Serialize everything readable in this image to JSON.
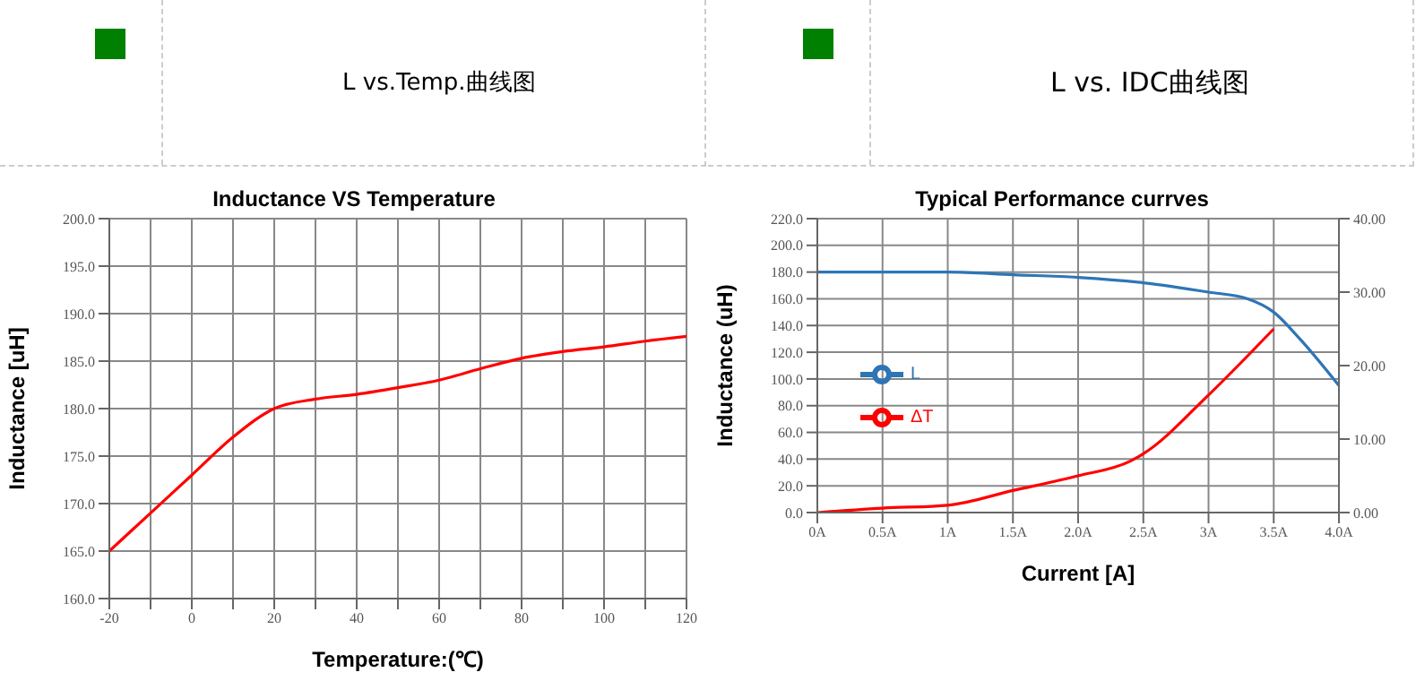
{
  "chart_data": [
    {
      "type": "line",
      "title": "Inductance VS Temperature",
      "annotations": [
        "L vs.Temp.曲线图"
      ],
      "xlabel": "Temperature:(℃)",
      "ylabel": "Inductance [uH]",
      "x": [
        -20,
        -10,
        0,
        10,
        20,
        30,
        40,
        50,
        60,
        70,
        80,
        90,
        100,
        110,
        120
      ],
      "series": [
        {
          "color": "#ff0000",
          "values": [
            165,
            169,
            173,
            177,
            180,
            181,
            181.5,
            182.2,
            183,
            184.2,
            185.3,
            186,
            186.5,
            187.1,
            187.6
          ]
        }
      ],
      "xlim": [
        -20,
        120
      ],
      "xticks": [
        -20,
        {
          "value": -10,
          "label": null
        },
        0,
        {
          "value": 10,
          "label": null
        },
        20,
        {
          "value": 30,
          "label": null
        },
        40,
        {
          "value": 50,
          "label": null
        },
        60,
        {
          "value": 70,
          "label": null
        },
        80,
        {
          "value": 90,
          "label": null
        },
        100,
        {
          "value": 110,
          "label": null
        },
        120
      ],
      "ylim": [
        160,
        200
      ],
      "yticks": [
        {
          "value": 160,
          "label": "160.0"
        },
        {
          "value": 165,
          "label": "165.0"
        },
        {
          "value": 170,
          "label": "170.0"
        },
        {
          "value": 175,
          "label": "175.0"
        },
        {
          "value": 180,
          "label": "180.0"
        },
        {
          "value": 185,
          "label": "185.0"
        },
        {
          "value": 190,
          "label": "190.0"
        },
        {
          "value": 195,
          "label": "195.0"
        },
        {
          "value": 200,
          "label": "200.0"
        }
      ],
      "grid": true,
      "legend": false,
      "marker": "none",
      "line_style": "solid"
    },
    {
      "type": "line",
      "title": "Typical Performance currves",
      "annotations": [
        "L vs. IDC曲线图"
      ],
      "xlabel": "Current [A]",
      "ylabel": "Inductance (uH)",
      "series": [
        {
          "name": "L",
          "color": "#2e75b6",
          "x": [
            0,
            0.5,
            1,
            1.5,
            2,
            2.5,
            3,
            3.3,
            3.5,
            3.7,
            4
          ],
          "values": [
            180,
            180,
            180,
            178,
            176,
            172,
            165,
            160,
            150,
            130,
            95
          ]
        },
        {
          "name": "ΔT",
          "color": "#ff0000",
          "axis": "y2",
          "x": [
            0,
            0.5,
            1,
            1.5,
            2,
            2.4,
            2.5,
            3,
            3.5
          ],
          "values": [
            0,
            0.6,
            1,
            3,
            5,
            7,
            8,
            16,
            25
          ]
        }
      ],
      "xlim": [
        0,
        4
      ],
      "xticks": [
        {
          "value": 0,
          "label": "0A"
        },
        {
          "value": 0.5,
          "label": "0.5A"
        },
        {
          "value": 1,
          "label": "1A"
        },
        {
          "value": 1.5,
          "label": "1.5A"
        },
        {
          "value": 2,
          "label": "2.0A"
        },
        {
          "value": 2.5,
          "label": "2.5A"
        },
        {
          "value": 3,
          "label": "3A"
        },
        {
          "value": 3.5,
          "label": "3.5A"
        },
        {
          "value": 4,
          "label": "4.0A"
        }
      ],
      "ylim": [
        0,
        220
      ],
      "yticks": [
        {
          "value": 0,
          "label": "0.0"
        },
        {
          "value": 20,
          "label": "20.0"
        },
        {
          "value": 40,
          "label": "40.0"
        },
        {
          "value": 60,
          "label": "60.0"
        },
        {
          "value": 80,
          "label": "80.0"
        },
        {
          "value": 100,
          "label": "100.0"
        },
        {
          "value": 120,
          "label": "120.0"
        },
        {
          "value": 140,
          "label": "140.0"
        },
        {
          "value": 160,
          "label": "160.0"
        },
        {
          "value": 180,
          "label": "180.0"
        },
        {
          "value": 200,
          "label": "200.0"
        },
        {
          "value": 220,
          "label": "220.0"
        }
      ],
      "y2lim": [
        0,
        40
      ],
      "y2ticks": [
        {
          "value": 0,
          "label": "0.00"
        },
        {
          "value": 10,
          "label": "10.00"
        },
        {
          "value": 20,
          "label": "20.00"
        },
        {
          "value": 30,
          "label": "30.00"
        },
        {
          "value": 40,
          "label": "40.00"
        }
      ],
      "grid": true,
      "legend": "left",
      "marker": "none",
      "line_style": "solid"
    }
  ]
}
